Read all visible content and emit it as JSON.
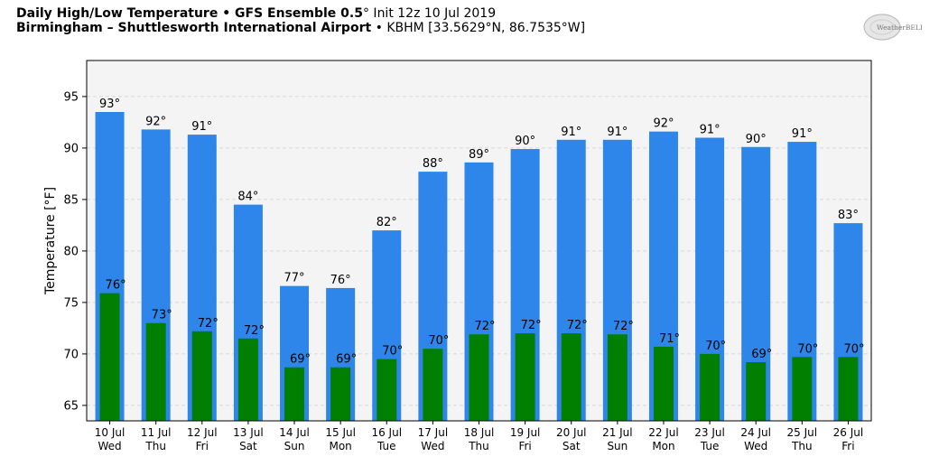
{
  "header": {
    "title_bold": "Daily High/Low Temperature • GFS Ensemble 0.5",
    "title_degree": "°",
    "title_rest": " Init 12z 10 Jul 2019",
    "subtitle_bold": "Birmingham – Shuttlesworth International Airport",
    "subtitle_rest": " • KBHM [33.5629°N, 86.7535°W]"
  },
  "logo": {
    "text": "WeatherBELL"
  },
  "chart_data": {
    "type": "bar",
    "categories": [
      [
        "10 Jul",
        "Wed"
      ],
      [
        "11 Jul",
        "Thu"
      ],
      [
        "12 Jul",
        "Fri"
      ],
      [
        "13 Jul",
        "Sat"
      ],
      [
        "14 Jul",
        "Sun"
      ],
      [
        "15 Jul",
        "Mon"
      ],
      [
        "16 Jul",
        "Tue"
      ],
      [
        "17 Jul",
        "Wed"
      ],
      [
        "18 Jul",
        "Thu"
      ],
      [
        "19 Jul",
        "Fri"
      ],
      [
        "20 Jul",
        "Sat"
      ],
      [
        "21 Jul",
        "Sun"
      ],
      [
        "22 Jul",
        "Mon"
      ],
      [
        "23 Jul",
        "Tue"
      ],
      [
        "24 Jul",
        "Wed"
      ],
      [
        "25 Jul",
        "Thu"
      ],
      [
        "26 Jul",
        "Fri"
      ]
    ],
    "series": [
      {
        "values": [
          93.5,
          91.8,
          91.3,
          84.5,
          76.6,
          76.4,
          82.0,
          87.7,
          88.6,
          89.9,
          90.8,
          90.8,
          91.6,
          91.0,
          90.1,
          90.6,
          82.7
        ],
        "labels": [
          "93°",
          "92°",
          "91°",
          "84°",
          "77°",
          "76°",
          "82°",
          "88°",
          "89°",
          "90°",
          "91°",
          "91°",
          "92°",
          "91°",
          "90°",
          "91°",
          "83°"
        ],
        "color": "#2e86ea"
      },
      {
        "values": [
          75.9,
          73.0,
          72.2,
          71.5,
          68.7,
          68.7,
          69.5,
          70.5,
          71.9,
          72.0,
          72.0,
          71.9,
          70.7,
          70.0,
          69.2,
          69.7,
          69.7
        ],
        "labels": [
          "76°",
          "73°",
          "72°",
          "72°",
          "69°",
          "69°",
          "70°",
          "70°",
          "72°",
          "72°",
          "72°",
          "72°",
          "71°",
          "70°",
          "69°",
          "70°",
          "70°"
        ],
        "color": "#007f00"
      }
    ],
    "ylabel": "Temperature [°F]",
    "ylim": [
      63.5,
      98.5
    ],
    "yticks": [
      65,
      70,
      75,
      80,
      85,
      90,
      95
    ],
    "grid": true,
    "plot_background": "#f4f4f4"
  }
}
